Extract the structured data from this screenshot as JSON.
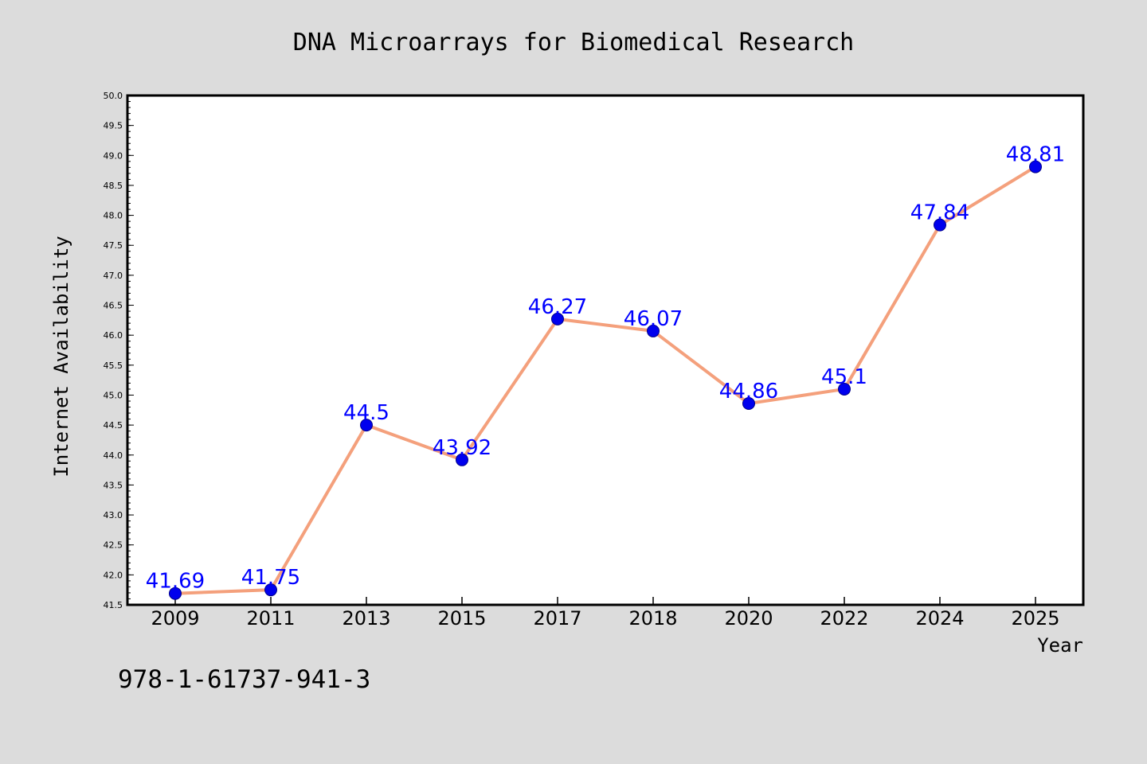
{
  "chart_data": {
    "type": "line",
    "title": "DNA Microarrays for Biomedical Research",
    "xlabel": "Year",
    "ylabel": "Internet Availability",
    "categories": [
      "2009",
      "2011",
      "2013",
      "2015",
      "2017",
      "2018",
      "2020",
      "2022",
      "2024",
      "2025"
    ],
    "values": [
      41.69,
      41.75,
      44.5,
      43.92,
      46.27,
      46.07,
      44.86,
      45.1,
      47.84,
      48.81
    ],
    "data_labels": [
      "41.69",
      "41.75",
      "44.5",
      "43.92",
      "46.27",
      "46.07",
      "44.86",
      "45.1",
      "47.84",
      "48.81"
    ],
    "ylim": [
      41.5,
      50.0
    ],
    "yticks": [
      "41.5",
      "42.0",
      "42.5",
      "43.0",
      "43.5",
      "44.0",
      "44.5",
      "45.0",
      "45.5",
      "46.0",
      "46.5",
      "47.0",
      "47.5",
      "48.0",
      "48.5",
      "49.0",
      "49.5",
      "50.0"
    ],
    "grid": false,
    "legend": "none",
    "line_color": "#f4a07c",
    "marker_color": "#0000ee",
    "label_color": "#0000ff"
  },
  "footer": {
    "isbn": "978-1-61737-941-3"
  }
}
